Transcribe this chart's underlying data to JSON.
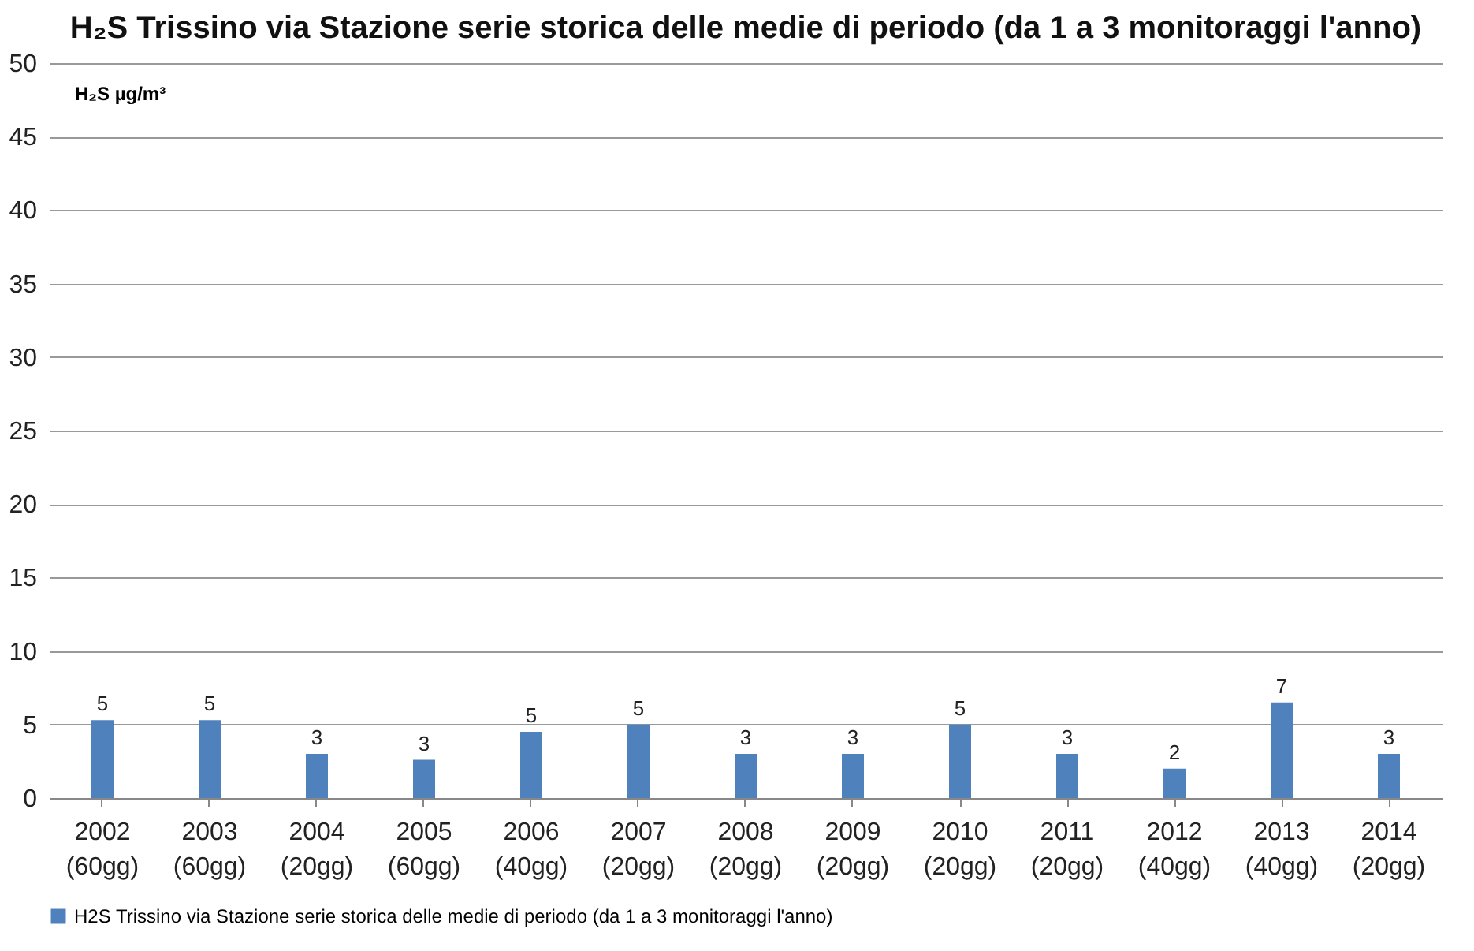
{
  "chart_data": {
    "type": "bar",
    "title": "H₂S Trissino via Stazione serie storica delle medie di periodo (da 1 a 3 monitoraggi l'anno)",
    "ylabel": "H₂S µg/m³",
    "categories": [
      "2002 (60gg)",
      "2003 (60gg)",
      "2004 (20gg)",
      "2005 (60gg)",
      "2006 (40gg)",
      "2007 (20gg)",
      "2008 (20gg)",
      "2009 (20gg)",
      "2010 (20gg)",
      "2011 (20gg)",
      "2012 (40gg)",
      "2013 (40gg)",
      "2014 (20gg)"
    ],
    "series": [
      {
        "name": "H2S Trissino  via Stazione serie storica delle medie di periodo (da 1 a 3 monitoraggi l'anno)",
        "color": "#4f81bd",
        "values": [
          5.3,
          5.3,
          3,
          2.6,
          4.5,
          5,
          3,
          3,
          5,
          3,
          2,
          6.5,
          3
        ],
        "value_labels": [
          "5",
          "5",
          "3",
          "3",
          "5",
          "5",
          "3",
          "3",
          "5",
          "3",
          "2",
          "7",
          "3"
        ]
      }
    ],
    "ylim": [
      0,
      50
    ],
    "yticks": [
      0,
      5,
      10,
      15,
      20,
      25,
      30,
      35,
      40,
      45,
      50
    ],
    "grid": "y",
    "legend": "bottom"
  }
}
